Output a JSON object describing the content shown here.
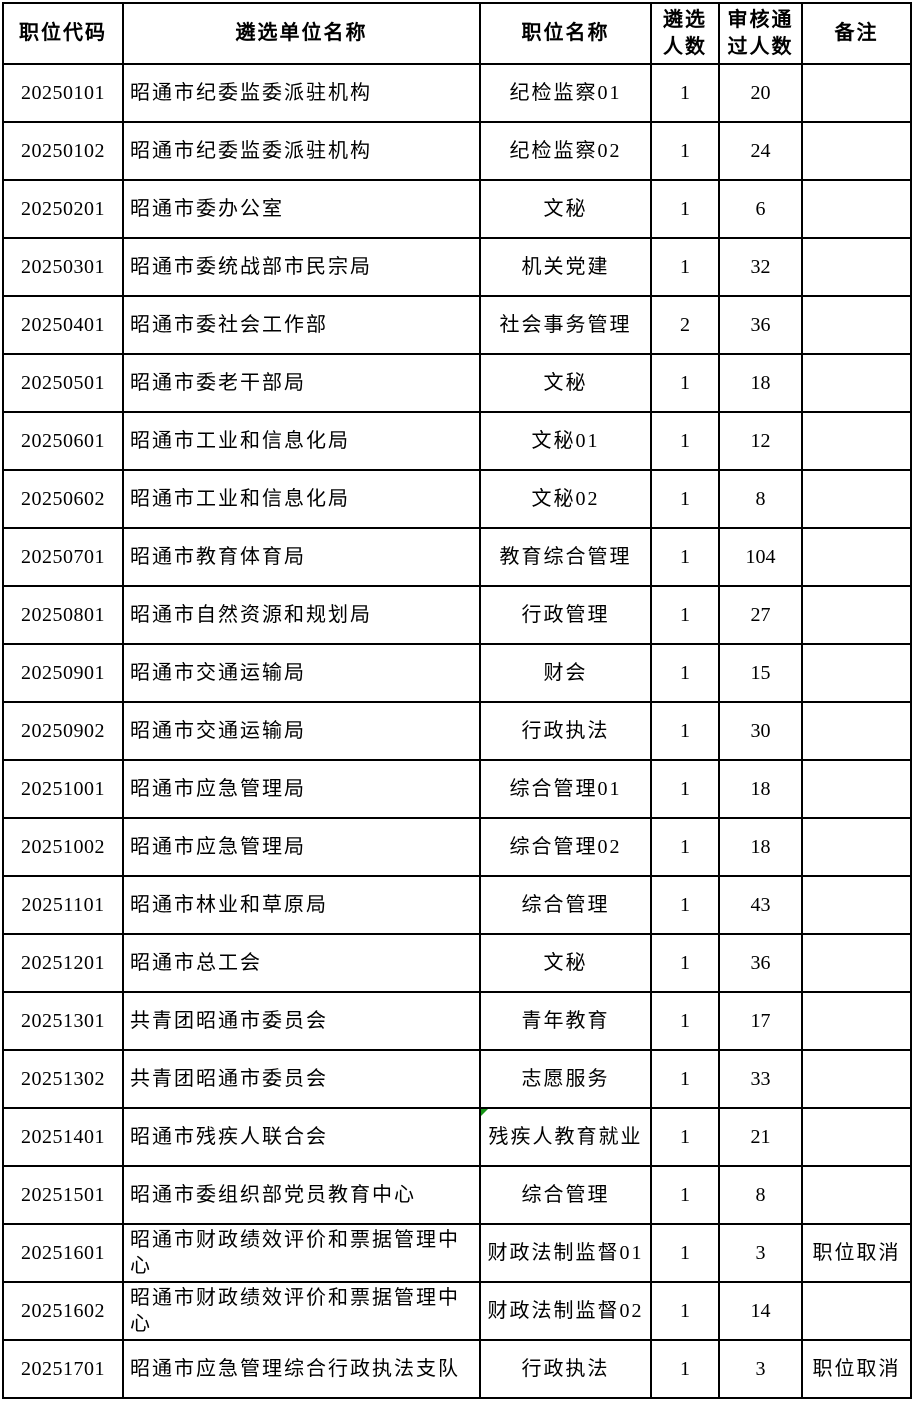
{
  "colors": {
    "border": "#000000",
    "text": "#000000",
    "background": "#ffffff",
    "comment_marker": "#169416"
  },
  "table": {
    "columns": [
      "职位代码",
      "遴选单位名称",
      "职位名称",
      "遴选\n人数",
      "审核通\n过人数",
      "备注"
    ],
    "rows": [
      {
        "code": "20250101",
        "unit": "昭通市纪委监委派驻机构",
        "position": "纪检监察01",
        "quota": "1",
        "approved": "20",
        "remark": ""
      },
      {
        "code": "20250102",
        "unit": "昭通市纪委监委派驻机构",
        "position": "纪检监察02",
        "quota": "1",
        "approved": "24",
        "remark": ""
      },
      {
        "code": "20250201",
        "unit": "昭通市委办公室",
        "position": "文秘",
        "quota": "1",
        "approved": "6",
        "remark": ""
      },
      {
        "code": "20250301",
        "unit": "昭通市委统战部市民宗局",
        "position": "机关党建",
        "quota": "1",
        "approved": "32",
        "remark": ""
      },
      {
        "code": "20250401",
        "unit": "昭通市委社会工作部",
        "position": "社会事务管理",
        "quota": "2",
        "approved": "36",
        "remark": ""
      },
      {
        "code": "20250501",
        "unit": "昭通市委老干部局",
        "position": "文秘",
        "quota": "1",
        "approved": "18",
        "remark": ""
      },
      {
        "code": "20250601",
        "unit": "昭通市工业和信息化局",
        "position": "文秘01",
        "quota": "1",
        "approved": "12",
        "remark": ""
      },
      {
        "code": "20250602",
        "unit": "昭通市工业和信息化局",
        "position": "文秘02",
        "quota": "1",
        "approved": "8",
        "remark": ""
      },
      {
        "code": "20250701",
        "unit": "昭通市教育体育局",
        "position": "教育综合管理",
        "quota": "1",
        "approved": "104",
        "remark": ""
      },
      {
        "code": "20250801",
        "unit": "昭通市自然资源和规划局",
        "position": "行政管理",
        "quota": "1",
        "approved": "27",
        "remark": ""
      },
      {
        "code": "20250901",
        "unit": "昭通市交通运输局",
        "position": "财会",
        "quota": "1",
        "approved": "15",
        "remark": ""
      },
      {
        "code": "20250902",
        "unit": "昭通市交通运输局",
        "position": "行政执法",
        "quota": "1",
        "approved": "30",
        "remark": ""
      },
      {
        "code": "20251001",
        "unit": "昭通市应急管理局",
        "position": "综合管理01",
        "quota": "1",
        "approved": "18",
        "remark": ""
      },
      {
        "code": "20251002",
        "unit": "昭通市应急管理局",
        "position": "综合管理02",
        "quota": "1",
        "approved": "18",
        "remark": ""
      },
      {
        "code": "20251101",
        "unit": "昭通市林业和草原局",
        "position": "综合管理",
        "quota": "1",
        "approved": "43",
        "remark": ""
      },
      {
        "code": "20251201",
        "unit": "昭通市总工会",
        "position": "文秘",
        "quota": "1",
        "approved": "36",
        "remark": ""
      },
      {
        "code": "20251301",
        "unit": "共青团昭通市委员会",
        "position": "青年教育",
        "quota": "1",
        "approved": "17",
        "remark": ""
      },
      {
        "code": "20251302",
        "unit": "共青团昭通市委员会",
        "position": "志愿服务",
        "quota": "1",
        "approved": "33",
        "remark": ""
      },
      {
        "code": "20251401",
        "unit": "昭通市残疾人联合会",
        "position": "残疾人教育就业",
        "quota": "1",
        "approved": "21",
        "remark": "",
        "marker": true
      },
      {
        "code": "20251501",
        "unit": "昭通市委组织部党员教育中心",
        "position": "综合管理",
        "quota": "1",
        "approved": "8",
        "remark": ""
      },
      {
        "code": "20251601",
        "unit": "昭通市财政绩效评价和票据管理中心",
        "position": "财政法制监督01",
        "quota": "1",
        "approved": "3",
        "remark": "职位取消"
      },
      {
        "code": "20251602",
        "unit": "昭通市财政绩效评价和票据管理中心",
        "position": "财政法制监督02",
        "quota": "1",
        "approved": "14",
        "remark": ""
      },
      {
        "code": "20251701",
        "unit": "昭通市应急管理综合行政执法支队",
        "position": "行政执法",
        "quota": "1",
        "approved": "3",
        "remark": "职位取消"
      }
    ]
  }
}
